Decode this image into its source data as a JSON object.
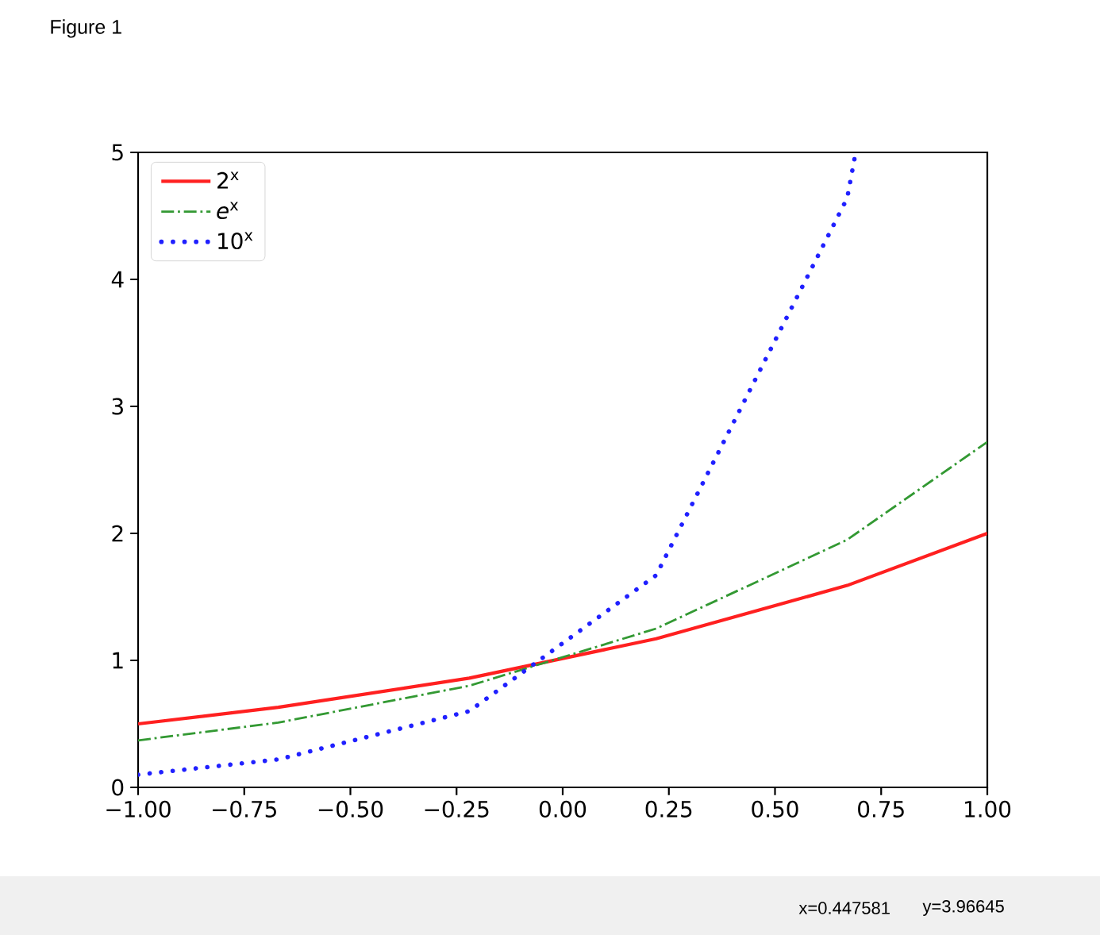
{
  "chart_data": {
    "type": "line",
    "x": [
      -1,
      -0.67,
      -0.22,
      0.22,
      0.67,
      1
    ],
    "series": [
      {
        "name": "2$^{x}$",
        "color": "#ff2020",
        "line_style": "solid",
        "values": [
          0.5,
          0.63,
          0.86,
          1.17,
          1.59,
          2.0
        ]
      },
      {
        "name": "*e*$^{x}$",
        "color": "#339933",
        "line_style": "dashdot",
        "values": [
          0.37,
          0.51,
          0.8,
          1.25,
          1.95,
          2.72
        ]
      },
      {
        "name": "10$^{x}$",
        "color": "#2020ff",
        "line_style": "dotted",
        "x": [
          -1,
          -0.67,
          -0.22,
          0.22,
          0.67,
          0.69
        ],
        "values": [
          0.1,
          0.22,
          0.6,
          1.67,
          4.64,
          5.0
        ]
      }
    ],
    "xlim": [
      -1,
      1
    ],
    "ylim": [
      0,
      5
    ],
    "xticks": [
      {
        "value": -1,
        "label": "−1.00"
      },
      {
        "value": -0.75,
        "label": "−0.75"
      },
      {
        "value": -0.5,
        "label": "−0.50"
      },
      {
        "value": -0.25,
        "label": "−0.25"
      },
      {
        "value": 0,
        "label": "0.00"
      },
      {
        "value": 0.25,
        "label": "0.25"
      },
      {
        "value": 0.5,
        "label": "0.50"
      },
      {
        "value": 0.75,
        "label": "0.75"
      },
      {
        "value": 1,
        "label": "1.00"
      }
    ],
    "yticks": [
      0,
      1,
      2,
      3,
      4,
      5
    ],
    "legend": "top left",
    "annotations": [
      "Figure 1",
      "x=0.447581",
      "y=3.96645"
    ]
  }
}
